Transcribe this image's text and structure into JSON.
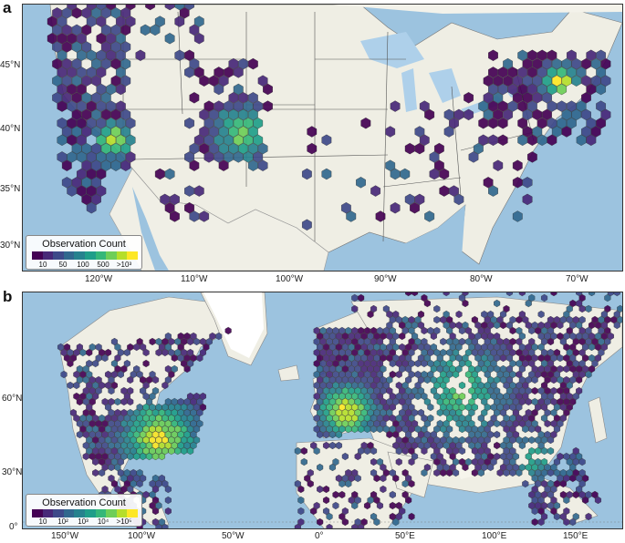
{
  "panels": [
    {
      "label": "a",
      "lat_ticks": [
        "45°N",
        "40°N",
        "35°N",
        "30°N"
      ],
      "lon_ticks": [
        "120°W",
        "110°W",
        "100°W",
        "90°W",
        "80°W",
        "70°W"
      ],
      "legend": {
        "title": "Observation Count",
        "ticks": [
          "10",
          "50",
          "100",
          "500",
          ">10³"
        ]
      }
    },
    {
      "label": "b",
      "lat_ticks": [
        "60°N",
        "30°N",
        "0°"
      ],
      "lon_ticks": [
        "150°W",
        "100°W",
        "50°W",
        "0°",
        "50°E",
        "100°E",
        "150°E"
      ],
      "legend": {
        "title": "Observation Count",
        "ticks": [
          "10",
          "10²",
          "10³",
          "10⁴",
          ">10⁵"
        ]
      }
    }
  ],
  "colors": {
    "ocean": "#9cc3df",
    "land": "#efeee4",
    "ice": "#ffffff",
    "lake": "#aed0ea",
    "border": "#555555",
    "viridis": [
      "#440154",
      "#482878",
      "#3e4989",
      "#31688e",
      "#26828e",
      "#1f9e89",
      "#35b779",
      "#6ece58",
      "#b5de2b",
      "#fde725"
    ]
  }
}
